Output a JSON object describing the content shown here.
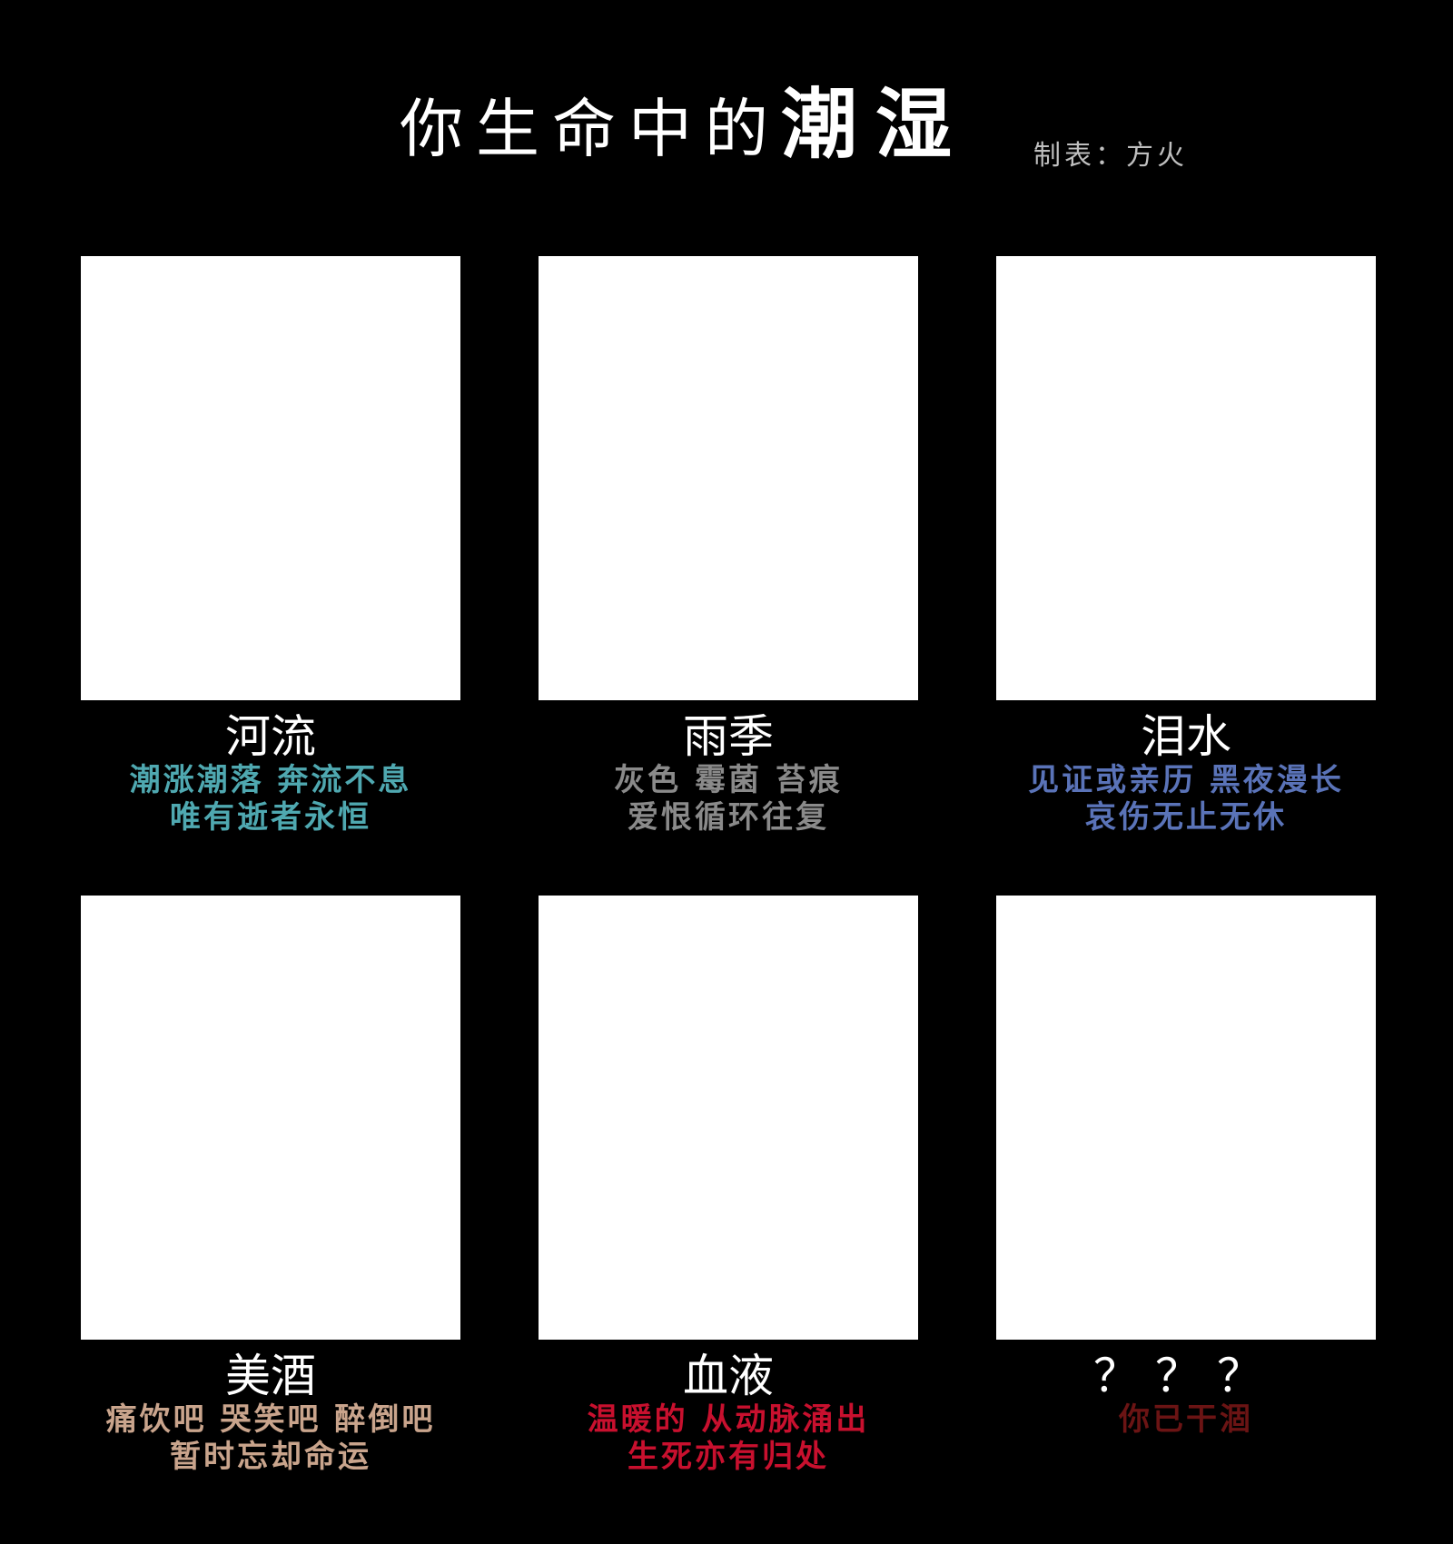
{
  "header": {
    "title_normal": "你生命中的",
    "title_strong": "潮湿",
    "author": "制表：方火"
  },
  "cards": [
    {
      "title": "河流",
      "line1": "潮涨潮落 奔流不息",
      "line2": "唯有逝者永恒",
      "color": "#4fa8b0"
    },
    {
      "title": "雨季",
      "line1": "灰色 霉菌 苔痕",
      "line2": "爱恨循环往复",
      "color": "#8a8a8a"
    },
    {
      "title": "泪水",
      "line1": "见证或亲历 黑夜漫长",
      "line2": "哀伤无止无休",
      "color": "#5a73b8"
    },
    {
      "title": "美酒",
      "line1": "痛饮吧 哭笑吧 醉倒吧",
      "line2": "暂时忘却命运",
      "color": "#c9a48c"
    },
    {
      "title": "血液",
      "line1": "温暖的 从动脉涌出",
      "line2": "生死亦有归处",
      "color": "#c8102e"
    },
    {
      "title": "？？？",
      "line1": "你已干涸",
      "line2": "",
      "color": "#6b1414"
    }
  ]
}
